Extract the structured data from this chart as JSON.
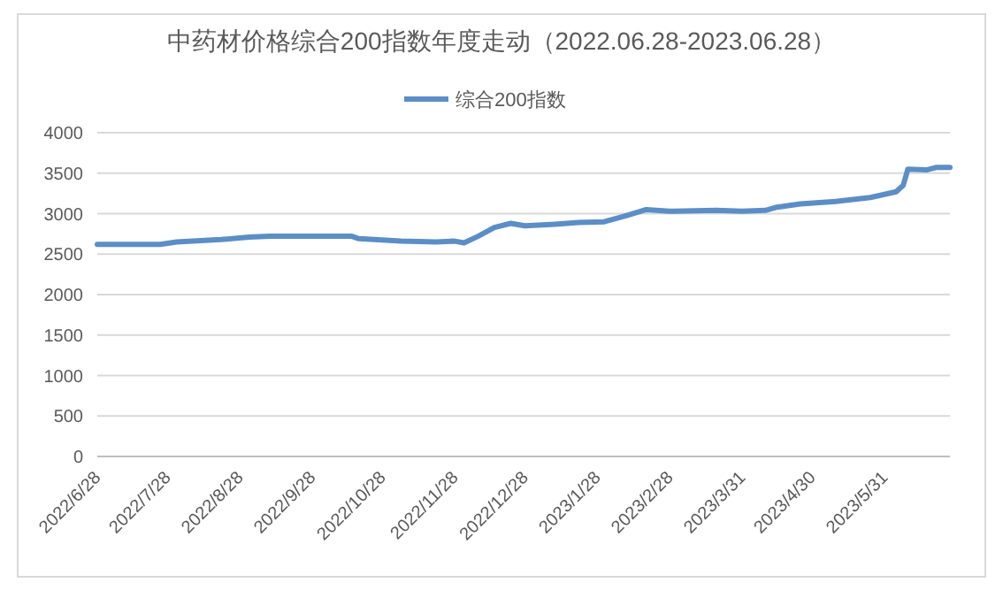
{
  "chart_data": {
    "type": "line",
    "title": "中药材价格综合200指数年度走动（2022.06.28-2023.06.28）",
    "x": [
      "2022-06-28",
      "2022-07-25",
      "2022-08-01",
      "2022-08-20",
      "2022-09-01",
      "2022-09-10",
      "2022-10-15",
      "2022-10-18",
      "2022-11-05",
      "2022-11-20",
      "2022-11-28",
      "2022-12-02",
      "2022-12-08",
      "2022-12-15",
      "2022-12-22",
      "2022-12-28",
      "2023-01-10",
      "2023-01-20",
      "2023-01-31",
      "2023-02-10",
      "2023-02-18",
      "2023-02-28",
      "2023-03-20",
      "2023-03-31",
      "2023-04-10",
      "2023-04-15",
      "2023-04-25",
      "2023-05-10",
      "2023-05-25",
      "2023-06-05",
      "2023-06-08",
      "2023-06-10",
      "2023-06-18",
      "2023-06-22",
      "2023-06-28"
    ],
    "series": [
      {
        "name": "综合200指数",
        "color": "#5b8ec7",
        "values": [
          2620,
          2620,
          2650,
          2680,
          2710,
          2720,
          2720,
          2690,
          2660,
          2650,
          2660,
          2640,
          2720,
          2830,
          2880,
          2850,
          2870,
          2890,
          2900,
          2980,
          3050,
          3030,
          3040,
          3030,
          3040,
          3080,
          3120,
          3150,
          3200,
          3270,
          3350,
          3550,
          3540,
          3570,
          3570
        ]
      }
    ],
    "xlim": [
      "2022-06-28",
      "2023-06-28"
    ],
    "xticks": [
      {
        "value": "2022-06-28",
        "label": "2022/6/28"
      },
      {
        "value": "2022-07-28",
        "label": "2022/7/28"
      },
      {
        "value": "2022-08-28",
        "label": "2022/8/28"
      },
      {
        "value": "2022-09-28",
        "label": "2022/9/28"
      },
      {
        "value": "2022-10-28",
        "label": "2022/10/28"
      },
      {
        "value": "2022-11-28",
        "label": "2022/11/28"
      },
      {
        "value": "2022-12-28",
        "label": "2022/12/28"
      },
      {
        "value": "2023-01-28",
        "label": "2023/1/28"
      },
      {
        "value": "2023-02-28",
        "label": "2023/2/28"
      },
      {
        "value": "2023-03-31",
        "label": "2023/3/31"
      },
      {
        "value": "2023-04-30",
        "label": "2023/4/30"
      },
      {
        "value": "2023-05-31",
        "label": "2023/5/31"
      }
    ],
    "ylim": [
      0,
      4000
    ],
    "yticks": [
      0,
      500,
      1000,
      1500,
      2000,
      2500,
      3000,
      3500,
      4000
    ],
    "grid": "y",
    "legend": "top",
    "marker": "none",
    "line_style": "solid"
  }
}
